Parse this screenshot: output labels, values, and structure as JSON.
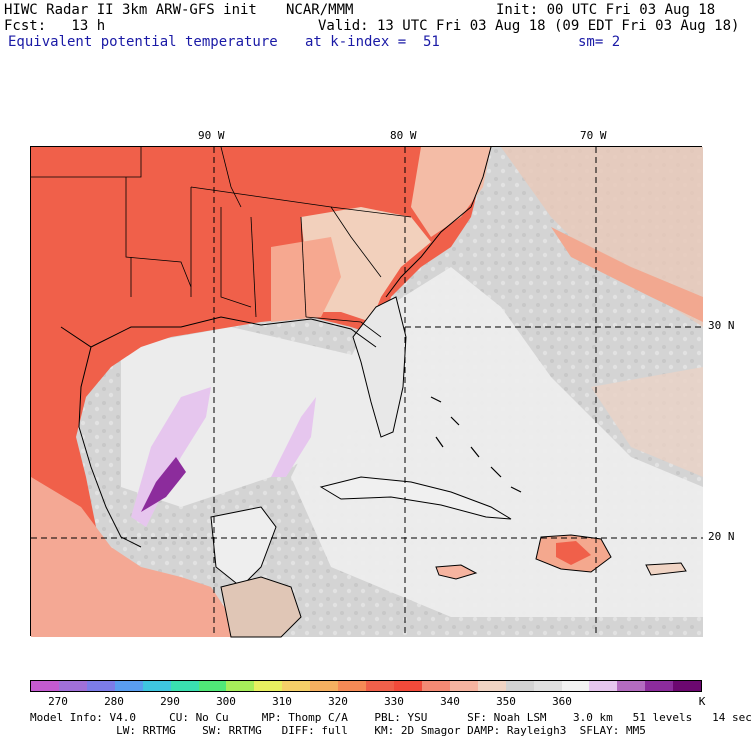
{
  "header": {
    "title": "HIWC Radar II 3km ARW-GFS init",
    "org": "NCAR/MMM",
    "init": "Init: 00 UTC Fri 03 Aug 18",
    "fcst": "Fcst:   13 h",
    "valid": "Valid: 13 UTC Fri 03 Aug 18 (09 EDT Fri 03 Aug 18)",
    "field": "Equivalent potential temperature",
    "level": "at k-index =  51",
    "smooth": "sm= 2"
  },
  "axes": {
    "lon_labels": [
      "90 W",
      "80 W",
      "70 W"
    ],
    "lat_labels": [
      "30 N",
      "20 N"
    ]
  },
  "colorbar": {
    "colors": [
      "#c45bd0",
      "#a070d8",
      "#7c7ce8",
      "#5a9ef0",
      "#3fc6e0",
      "#3ae0b0",
      "#50e878",
      "#a6ee5a",
      "#e8f060",
      "#f6d068",
      "#f6b060",
      "#f68a56",
      "#f0604a",
      "#f24a3a",
      "#f48a74",
      "#f6b4a0",
      "#f0d4c4",
      "#d2d2d2",
      "#e0e0e0",
      "#f2f2f2",
      "#e6c6ee",
      "#b46cc0",
      "#8c2c9c",
      "#6c0870"
    ],
    "labels": [
      "270",
      "280",
      "290",
      "300",
      "310",
      "320",
      "330",
      "340",
      "350",
      "360",
      "K"
    ]
  },
  "footer": {
    "line1": "Model Info: V4.0     CU: No Cu     MP: Thomp C/A    PBL: YSU      SF: Noah LSM    3.0 km   51 levels   14 sec",
    "line2": "             LW: RRTMG    SW: RRTMG   DIFF: full    KM: 2D Smagor DAMP: Rayleigh3  SFLAY: MM5"
  }
}
